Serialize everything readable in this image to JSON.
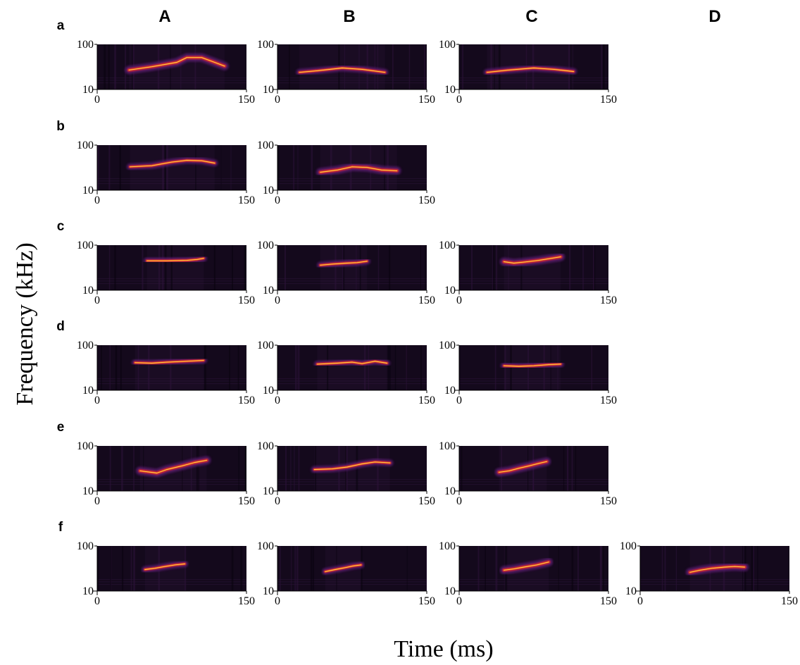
{
  "chart_data": {
    "type": "spectrogram-grid",
    "columns": [
      "A",
      "B",
      "C",
      "D"
    ],
    "rows": [
      "a",
      "b",
      "c",
      "d",
      "e",
      "f"
    ],
    "xlabel": "Time (ms)",
    "ylabel": "Frequency (kHz)",
    "x_ticks": [
      "0",
      "150"
    ],
    "y_ticks": [
      "10",
      "100"
    ],
    "xlim": [
      0,
      150
    ],
    "ylim": [
      10,
      100
    ],
    "y_scale": "log",
    "colormap": [
      "#14091c",
      "#5a1a6e",
      "#b3213d",
      "#f05a1e",
      "#ffd24a"
    ],
    "panels": [
      {
        "row": "a",
        "col": "A",
        "onset": 32,
        "offset": 128,
        "contour": [
          [
            32,
            27
          ],
          [
            55,
            32
          ],
          [
            80,
            40
          ],
          [
            90,
            51
          ],
          [
            105,
            51
          ],
          [
            118,
            40
          ],
          [
            128,
            33
          ]
        ],
        "band_width": 3
      },
      {
        "row": "a",
        "col": "B",
        "onset": 22,
        "offset": 108,
        "contour": [
          [
            22,
            24
          ],
          [
            40,
            26
          ],
          [
            65,
            30
          ],
          [
            85,
            28
          ],
          [
            108,
            24
          ]
        ],
        "band_width": 2
      },
      {
        "row": "a",
        "col": "C",
        "onset": 28,
        "offset": 115,
        "contour": [
          [
            28,
            24
          ],
          [
            50,
            27
          ],
          [
            75,
            30
          ],
          [
            95,
            28
          ],
          [
            115,
            25
          ]
        ],
        "band_width": 2
      },
      {
        "row": "b",
        "col": "A",
        "onset": 33,
        "offset": 118,
        "contour": [
          [
            33,
            33
          ],
          [
            55,
            35
          ],
          [
            75,
            42
          ],
          [
            90,
            46
          ],
          [
            105,
            45
          ],
          [
            118,
            40
          ]
        ],
        "band_width": 2
      },
      {
        "row": "b",
        "col": "B",
        "onset": 43,
        "offset": 120,
        "contour": [
          [
            43,
            25
          ],
          [
            60,
            28
          ],
          [
            75,
            33
          ],
          [
            90,
            32
          ],
          [
            105,
            28
          ],
          [
            120,
            27
          ]
        ],
        "band_width": 3
      },
      {
        "row": "c",
        "col": "A",
        "onset": 50,
        "offset": 107,
        "contour": [
          [
            50,
            45
          ],
          [
            70,
            45
          ],
          [
            90,
            46
          ],
          [
            100,
            48
          ],
          [
            107,
            51
          ]
        ],
        "band_width": 2
      },
      {
        "row": "c",
        "col": "B",
        "onset": 43,
        "offset": 90,
        "contour": [
          [
            43,
            36
          ],
          [
            55,
            38
          ],
          [
            70,
            40
          ],
          [
            80,
            41
          ],
          [
            90,
            44
          ]
        ],
        "band_width": 2
      },
      {
        "row": "c",
        "col": "C",
        "onset": 45,
        "offset": 102,
        "contour": [
          [
            45,
            43
          ],
          [
            55,
            40
          ],
          [
            65,
            42
          ],
          [
            80,
            46
          ],
          [
            90,
            50
          ],
          [
            102,
            55
          ]
        ],
        "band_width": 3
      },
      {
        "row": "d",
        "col": "A",
        "onset": 38,
        "offset": 107,
        "contour": [
          [
            38,
            41
          ],
          [
            55,
            40
          ],
          [
            70,
            42
          ],
          [
            90,
            44
          ],
          [
            107,
            46
          ]
        ],
        "band_width": 2
      },
      {
        "row": "d",
        "col": "B",
        "onset": 40,
        "offset": 110,
        "contour": [
          [
            40,
            38
          ],
          [
            60,
            40
          ],
          [
            75,
            42
          ],
          [
            85,
            39
          ],
          [
            98,
            44
          ],
          [
            110,
            40
          ]
        ],
        "band_width": 2
      },
      {
        "row": "d",
        "col": "C",
        "onset": 45,
        "offset": 102,
        "contour": [
          [
            45,
            35
          ],
          [
            60,
            34
          ],
          [
            75,
            35
          ],
          [
            90,
            37
          ],
          [
            102,
            38
          ]
        ],
        "band_width": 2
      },
      {
        "row": "e",
        "col": "A",
        "onset": 43,
        "offset": 110,
        "contour": [
          [
            43,
            28
          ],
          [
            60,
            25
          ],
          [
            70,
            30
          ],
          [
            85,
            36
          ],
          [
            98,
            43
          ],
          [
            110,
            48
          ]
        ],
        "band_width": 3
      },
      {
        "row": "e",
        "col": "B",
        "onset": 37,
        "offset": 113,
        "contour": [
          [
            37,
            30
          ],
          [
            55,
            31
          ],
          [
            70,
            34
          ],
          [
            85,
            40
          ],
          [
            98,
            44
          ],
          [
            113,
            42
          ]
        ],
        "band_width": 2
      },
      {
        "row": "e",
        "col": "C",
        "onset": 40,
        "offset": 88,
        "contour": [
          [
            40,
            26
          ],
          [
            50,
            28
          ],
          [
            60,
            32
          ],
          [
            70,
            36
          ],
          [
            80,
            41
          ],
          [
            88,
            45
          ]
        ],
        "band_width": 3
      },
      {
        "row": "f",
        "col": "A",
        "onset": 48,
        "offset": 88,
        "contour": [
          [
            48,
            30
          ],
          [
            58,
            32
          ],
          [
            68,
            35
          ],
          [
            78,
            38
          ],
          [
            88,
            40
          ]
        ],
        "band_width": 2
      },
      {
        "row": "f",
        "col": "B",
        "onset": 48,
        "offset": 84,
        "contour": [
          [
            48,
            27
          ],
          [
            58,
            30
          ],
          [
            68,
            33
          ],
          [
            76,
            36
          ],
          [
            84,
            38
          ]
        ],
        "band_width": 2
      },
      {
        "row": "f",
        "col": "C",
        "onset": 45,
        "offset": 90,
        "contour": [
          [
            45,
            29
          ],
          [
            55,
            31
          ],
          [
            65,
            34
          ],
          [
            78,
            38
          ],
          [
            90,
            44
          ]
        ],
        "band_width": 3
      },
      {
        "row": "f",
        "col": "D",
        "onset": 50,
        "offset": 105,
        "contour": [
          [
            50,
            26
          ],
          [
            60,
            29
          ],
          [
            72,
            32
          ],
          [
            85,
            34
          ],
          [
            95,
            35
          ],
          [
            105,
            34
          ]
        ],
        "band_width": 3
      }
    ]
  }
}
